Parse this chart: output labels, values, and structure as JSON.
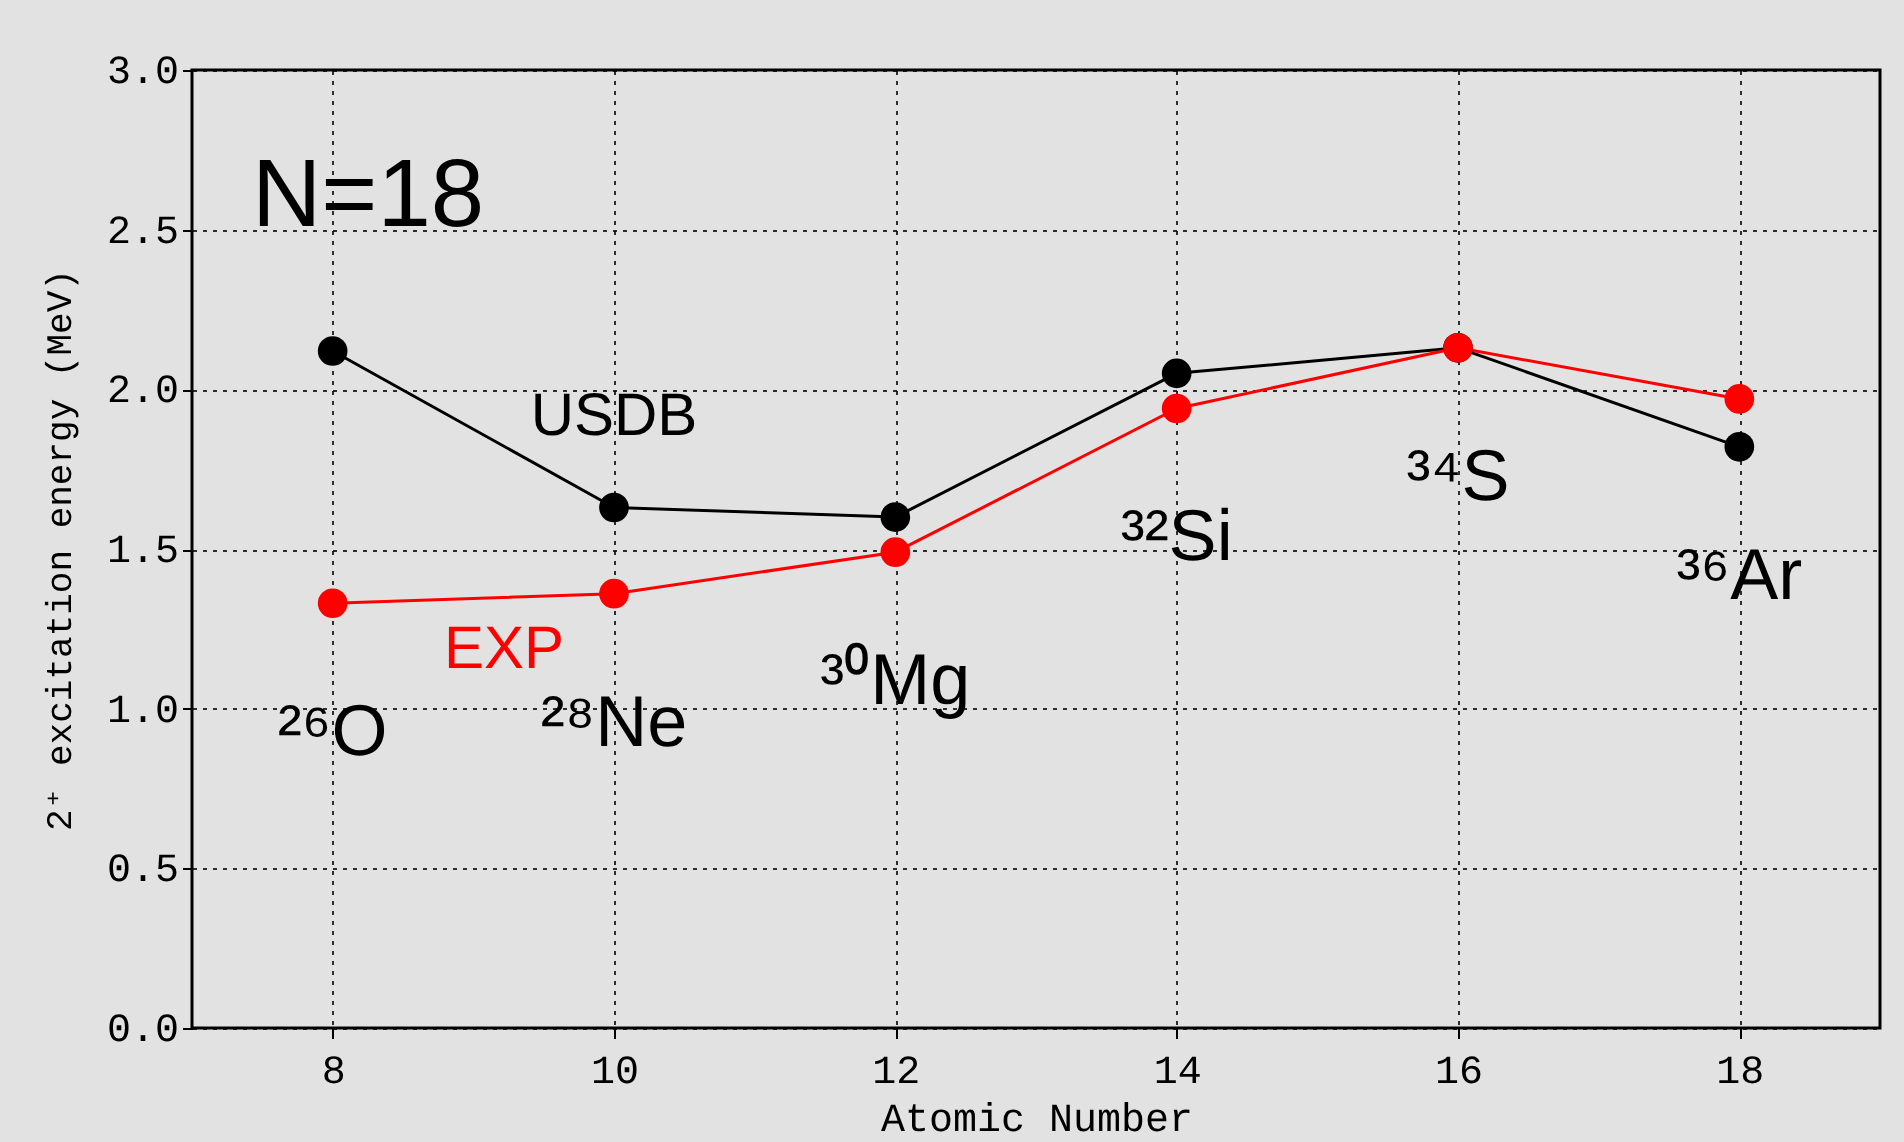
{
  "chart_data": {
    "type": "line",
    "xlabel": "Atomic Number",
    "ylabel": "2⁺ excitation energy (MeV)",
    "x": [
      8,
      10,
      12,
      14,
      16,
      18
    ],
    "series": [
      {
        "name": "USDB",
        "color": "#000000",
        "values": [
          2.12,
          1.63,
          1.6,
          2.05,
          2.13,
          1.82
        ]
      },
      {
        "name": "EXP",
        "color": "#ff0000",
        "values": [
          1.33,
          1.36,
          1.49,
          1.94,
          2.13,
          1.97
        ]
      }
    ],
    "xlim": [
      7,
      19
    ],
    "xticks": [
      8,
      10,
      12,
      14,
      16,
      18
    ],
    "ylim": [
      0,
      3
    ],
    "yticks": [
      {
        "value": 0,
        "label": "0.0"
      },
      0.5,
      {
        "value": 1,
        "label": "1.0"
      },
      1.5,
      {
        "value": 2,
        "label": "2.0"
      },
      2.5,
      {
        "value": 3,
        "label": "3.0"
      }
    ],
    "grid": true,
    "marker": "circle",
    "annotations": [
      "N=18",
      "²⁶O",
      "²⁸Ne",
      "³⁰Mg",
      "³²Si",
      "³⁴S",
      "³⁶Ar"
    ]
  }
}
